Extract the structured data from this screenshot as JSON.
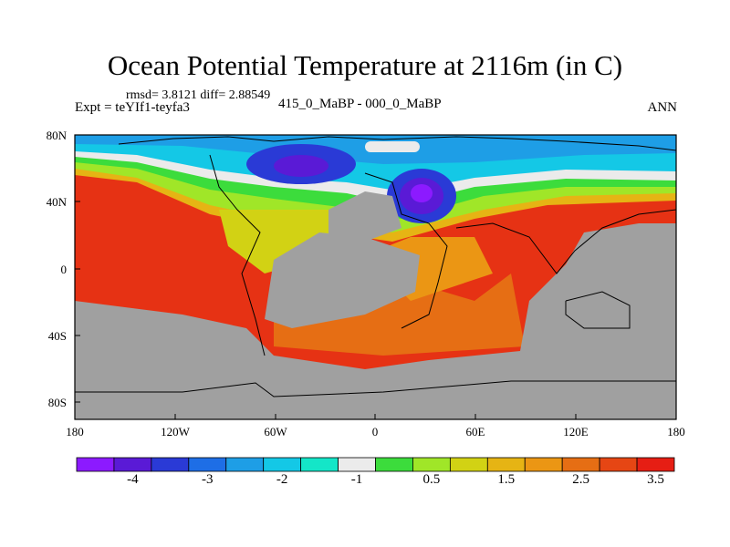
{
  "title": "Ocean Potential Temperature at 2116m (in C)",
  "stats": "rmsd= 3.8121 diff= 2.88549",
  "experiment": "Expt = teYIf1-teyfa3",
  "subtitle": "415_0_MaBP - 000_0_MaBP",
  "season": "ANN",
  "lat_ticks": [
    "80N",
    "40N",
    "0",
    "40S",
    "80S"
  ],
  "lon_ticks": [
    "180",
    "120W",
    "60W",
    "0",
    "60E",
    "120E",
    "180"
  ],
  "colorbar": {
    "colors": [
      "#8c1aff",
      "#5a1ad6",
      "#2a3ad6",
      "#1e6ee6",
      "#1e9ee6",
      "#14c8e6",
      "#14e6c8",
      "#ebebeb",
      "#3cdc3c",
      "#a0e628",
      "#d2d214",
      "#e6b414",
      "#eb9614",
      "#e66e14",
      "#e64614",
      "#e61e14"
    ],
    "labels": [
      "-4",
      "-3",
      "-2",
      "-1",
      "0.5",
      "1.5",
      "2.5",
      "3.5"
    ],
    "land_color": "#a0a0a0"
  }
}
